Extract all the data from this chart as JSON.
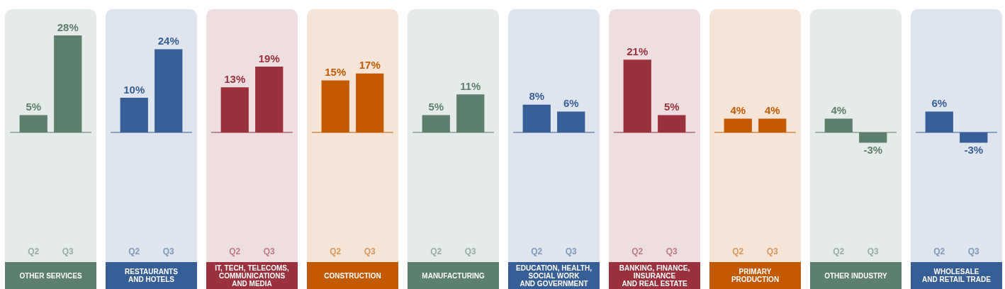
{
  "chart_data": [
    {
      "type": "bar",
      "title": "OTHER SERVICES",
      "categories": [
        "Q2",
        "Q3"
      ],
      "values": [
        5,
        28
      ],
      "value_labels": [
        "5%",
        "28%"
      ],
      "color": "#5c7f6e",
      "ref_lines": [
        {
          "axis": "y",
          "value": 0,
          "color": "#5c7f6e"
        }
      ]
    },
    {
      "type": "bar",
      "title": "RESTAURANTS\nAND HOTELS",
      "categories": [
        "Q2",
        "Q3"
      ],
      "values": [
        10,
        24
      ],
      "value_labels": [
        "10%",
        "24%"
      ],
      "color": "#375f97",
      "ref_lines": [
        {
          "axis": "y",
          "value": 0,
          "color": "#375f97"
        }
      ]
    },
    {
      "type": "bar",
      "title": "IT, TECH, TELECOMS,\nCOMMUNICATIONS\nAND MEDIA",
      "categories": [
        "Q2",
        "Q3"
      ],
      "values": [
        13,
        19
      ],
      "value_labels": [
        "13%",
        "19%"
      ],
      "color": "#9b313d",
      "ref_lines": [
        {
          "axis": "y",
          "value": 0,
          "color": "#9b313d"
        }
      ]
    },
    {
      "type": "bar",
      "title": "CONSTRUCTION",
      "categories": [
        "Q2",
        "Q3"
      ],
      "values": [
        15,
        17
      ],
      "value_labels": [
        "15%",
        "17%"
      ],
      "color": "#c45a00",
      "ref_lines": [
        {
          "axis": "y",
          "value": 0,
          "color": "#c45a00"
        }
      ]
    },
    {
      "type": "bar",
      "title": "MANUFACTURING",
      "categories": [
        "Q2",
        "Q3"
      ],
      "values": [
        5,
        11
      ],
      "value_labels": [
        "5%",
        "11%"
      ],
      "color": "#5c7f6e",
      "ref_lines": [
        {
          "axis": "y",
          "value": 0,
          "color": "#5c7f6e"
        }
      ]
    },
    {
      "type": "bar",
      "title": "EDUCATION, HEALTH,\nSOCIAL WORK\nAND GOVERNMENT",
      "categories": [
        "Q2",
        "Q3"
      ],
      "values": [
        8,
        6
      ],
      "value_labels": [
        "8%",
        "6%"
      ],
      "color": "#375f97",
      "ref_lines": [
        {
          "axis": "y",
          "value": 0,
          "color": "#375f97"
        }
      ]
    },
    {
      "type": "bar",
      "title": "BANKING, FINANCE,\nINSURANCE\nAND REAL ESTATE",
      "categories": [
        "Q2",
        "Q3"
      ],
      "values": [
        21,
        5
      ],
      "value_labels": [
        "21%",
        "5%"
      ],
      "color": "#9b313d",
      "ref_lines": [
        {
          "axis": "y",
          "value": 0,
          "color": "#9b313d"
        }
      ]
    },
    {
      "type": "bar",
      "title": "PRIMARY\nPRODUCTION",
      "categories": [
        "Q2",
        "Q3"
      ],
      "values": [
        4,
        4
      ],
      "value_labels": [
        "4%",
        "4%"
      ],
      "color": "#c45a00",
      "ref_lines": [
        {
          "axis": "y",
          "value": 0,
          "color": "#c45a00"
        }
      ]
    },
    {
      "type": "bar",
      "title": "OTHER INDUSTRY",
      "categories": [
        "Q2",
        "Q3"
      ],
      "values": [
        4,
        -3
      ],
      "value_labels": [
        "4%",
        "-3%"
      ],
      "color": "#5c7f6e",
      "ref_lines": [
        {
          "axis": "y",
          "value": 0,
          "color": "#5c7f6e"
        }
      ]
    },
    {
      "type": "bar",
      "title": "WHOLESALE\nAND RETAIL TRADE",
      "categories": [
        "Q2",
        "Q3"
      ],
      "values": [
        6,
        -3
      ],
      "value_labels": [
        "6%",
        "-3%"
      ],
      "color": "#375f97",
      "ref_lines": [
        {
          "axis": "y",
          "value": 0,
          "color": "#375f97"
        }
      ]
    }
  ]
}
